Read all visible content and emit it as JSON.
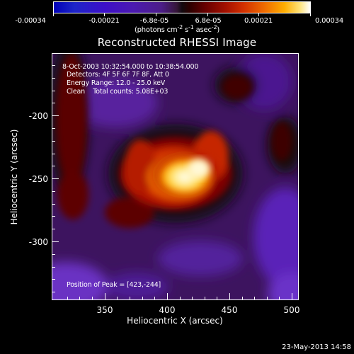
{
  "colorbar": {
    "tick_labels": [
      "-0.00034",
      "-0.00021",
      "-6.8e-05",
      "6.8e-05",
      "0.00021",
      "0.00034"
    ],
    "units_prefix": "(photons cm",
    "units_exp1": "-2",
    "units_mid": " s",
    "units_exp2": "-1",
    "units_mid2": " asec",
    "units_exp3": "-2",
    "units_suffix": ")"
  },
  "title": "Reconstructed RHESSI Image",
  "info": {
    "time_range": "8-Oct-2003 10:32:54.000 to 10:38:54.000",
    "detectors": "Detectors: 4F 5F 6F 7F 8F, Att 0",
    "energy_range": "Energy Range: 12.0 - 25.0 keV",
    "method_counts": "Clean    Total counts: 5.08E+03",
    "peak_position": "Position of Peak = [423,-244]"
  },
  "axes": {
    "x_title": "Heliocentric X (arcsec)",
    "y_title": "Heliocentric Y (arcsec)",
    "x_ticks": [
      "350",
      "400",
      "450",
      "500"
    ],
    "y_ticks": [
      "-200",
      "-250",
      "-300"
    ]
  },
  "footer_timestamp": "23-May-2013 14:58",
  "colors": {
    "background": "#000000",
    "negative_low": "#0000b8",
    "negative_mid": "#4c1d88",
    "zero": "#120a0f",
    "positive_mid": "#d23000",
    "positive_high": "#ffae00",
    "max": "#ffffff"
  }
}
